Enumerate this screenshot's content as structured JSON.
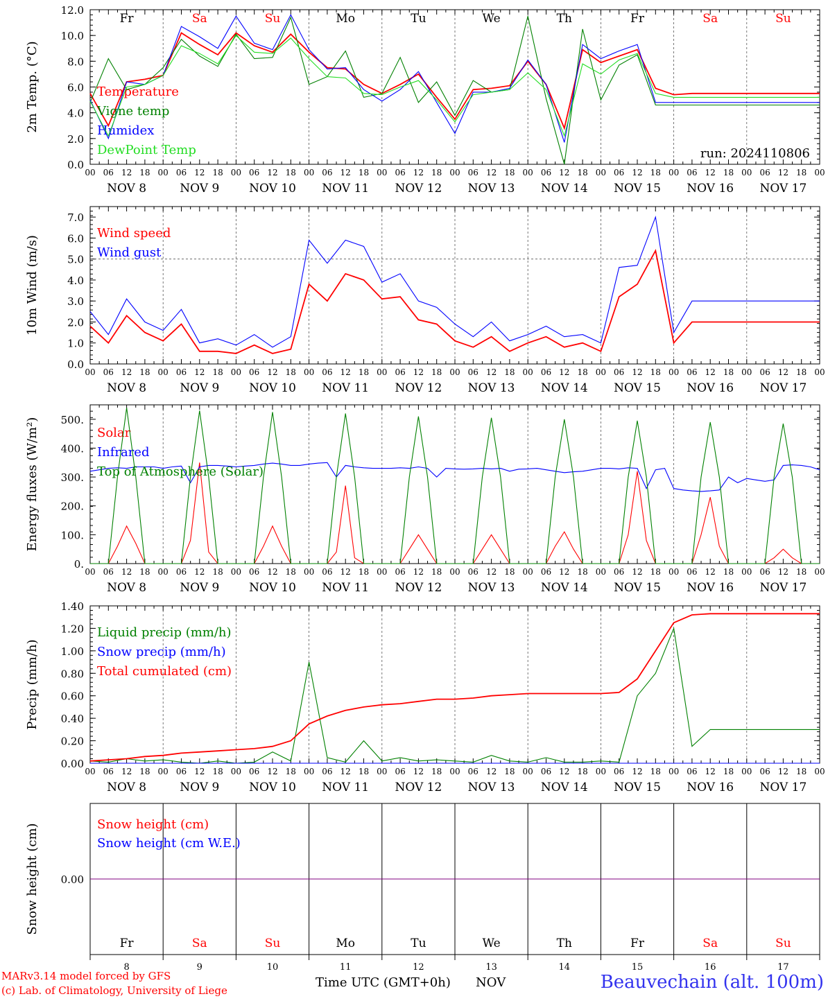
{
  "footer": {
    "credit_line1": "MARv3.14 model forced by GFS",
    "credit_line2": "(c) Lab. of Climatology, University of Liege",
    "xlabel": "Time UTC (GMT+0h)",
    "month": "NOV",
    "station": "Beauvechain (alt. 100m)"
  },
  "run_label": "run: 2024110806",
  "colors": {
    "red": "#ff0000",
    "green": "#008000",
    "blue": "#0000ff",
    "lightgreen": "#22dd22",
    "purple": "#800080",
    "weekend": "#ff0000",
    "weekday": "#000000"
  },
  "days": {
    "weekdays": [
      "Fr",
      "Sa",
      "Su",
      "Mo",
      "Tu",
      "We",
      "Th",
      "Fr",
      "Sa",
      "Su"
    ],
    "weekend": [
      false,
      true,
      true,
      false,
      false,
      false,
      false,
      false,
      true,
      true
    ],
    "labels": [
      "NOV  8",
      "NOV  9",
      "NOV 10",
      "NOV 11",
      "NOV 12",
      "NOV 13",
      "NOV 14",
      "NOV 15",
      "NOV 16",
      "NOV 17"
    ],
    "numbers": [
      "8",
      "9",
      "10",
      "11",
      "12",
      "13",
      "14",
      "15",
      "16",
      "17"
    ],
    "hours": [
      "00",
      "06",
      "12",
      "18"
    ],
    "final_hour": "00"
  },
  "chart_data": [
    {
      "type": "line",
      "ylabel": "2m Temp. (°C)",
      "ylim": [
        0,
        12
      ],
      "yticks": [
        "0.0",
        "2.0",
        "4.0",
        "6.0",
        "8.0",
        "10.0",
        "12.0"
      ],
      "x_hours": [
        0,
        6,
        12,
        18,
        24,
        30,
        36,
        42,
        48,
        54,
        60,
        66,
        72,
        78,
        84,
        90,
        96,
        102,
        108,
        114,
        120,
        126,
        132,
        138,
        144,
        150,
        156,
        162,
        168,
        174,
        180,
        186,
        192,
        198,
        204,
        210,
        216,
        222,
        228,
        234,
        240
      ],
      "series": [
        {
          "name": "Temperature",
          "color": "#ff0000",
          "values": [
            5.5,
            3.0,
            6.4,
            6.6,
            6.9,
            10.2,
            9.3,
            8.5,
            10.2,
            9.2,
            8.7,
            10.1,
            8.7,
            7.5,
            7.4,
            6.2,
            5.5,
            6.2,
            7.0,
            5.2,
            3.5,
            5.8,
            5.9,
            6.1,
            8.0,
            6.2,
            2.8,
            8.9,
            7.9,
            8.4,
            8.9,
            5.9,
            5.4,
            5.5,
            5.5,
            5.5,
            5.5,
            5.5,
            5.5,
            5.5,
            5.5
          ]
        },
        {
          "name": "Vigne temp",
          "color": "#008000",
          "values": [
            4.8,
            8.2,
            5.8,
            6.2,
            7.5,
            9.7,
            8.4,
            7.6,
            10.1,
            8.2,
            8.3,
            11.4,
            6.2,
            6.8,
            8.8,
            5.2,
            5.5,
            8.3,
            4.8,
            6.4,
            3.8,
            6.5,
            5.6,
            5.8,
            11.5,
            5.1,
            0.0,
            10.5,
            5.0,
            7.7,
            8.5,
            4.6,
            4.6,
            4.6,
            4.6,
            4.6,
            4.6,
            4.6,
            4.6,
            4.6,
            4.6
          ]
        },
        {
          "name": "Humidex",
          "color": "#0000ff",
          "values": [
            5.0,
            2.0,
            6.4,
            6.2,
            6.9,
            10.7,
            9.9,
            9.0,
            11.5,
            9.4,
            8.9,
            11.6,
            8.9,
            7.4,
            7.5,
            5.8,
            4.9,
            5.8,
            7.2,
            4.8,
            2.4,
            5.6,
            5.6,
            5.9,
            8.1,
            6.2,
            1.7,
            9.3,
            8.2,
            8.8,
            9.3,
            4.8,
            4.8,
            4.8,
            4.8,
            4.8,
            4.8,
            4.8,
            4.8,
            4.8,
            4.8
          ]
        },
        {
          "name": "DewPoint Temp",
          "color": "#22dd22",
          "values": [
            4.9,
            2.2,
            6.0,
            6.2,
            6.9,
            9.2,
            8.6,
            7.8,
            10.0,
            8.7,
            8.6,
            9.8,
            8.2,
            6.8,
            6.7,
            5.5,
            5.4,
            6.0,
            6.5,
            5.0,
            3.3,
            5.4,
            5.6,
            5.8,
            7.1,
            5.8,
            2.2,
            7.8,
            7.0,
            8.1,
            8.6,
            5.5,
            5.2,
            5.2,
            5.2,
            5.2,
            5.2,
            5.2,
            5.2,
            5.2,
            5.2
          ]
        }
      ]
    },
    {
      "type": "line",
      "ylabel": "10m Wind (m/s)",
      "ylim": [
        0,
        7.5
      ],
      "yticks": [
        "0.0",
        "1.0",
        "2.0",
        "3.0",
        "4.0",
        "5.0",
        "6.0",
        "7.0"
      ],
      "ref_line": 5.0,
      "x_hours": [
        0,
        6,
        12,
        18,
        24,
        30,
        36,
        42,
        48,
        54,
        60,
        66,
        72,
        78,
        84,
        90,
        96,
        102,
        108,
        114,
        120,
        126,
        132,
        138,
        144,
        150,
        156,
        162,
        168,
        174,
        180,
        186,
        192,
        198,
        204,
        210,
        216,
        222,
        228,
        234,
        240
      ],
      "series": [
        {
          "name": "Wind speed",
          "color": "#ff0000",
          "values": [
            1.8,
            1.0,
            2.3,
            1.5,
            1.1,
            1.9,
            0.6,
            0.6,
            0.5,
            0.9,
            0.5,
            0.7,
            3.8,
            3.0,
            4.3,
            4.0,
            3.1,
            3.2,
            2.1,
            1.9,
            1.1,
            0.8,
            1.3,
            0.6,
            1.0,
            1.3,
            0.8,
            1.0,
            0.6,
            3.2,
            3.8,
            5.4,
            1.0,
            2.0,
            2.0,
            2.0,
            2.0,
            2.0,
            2.0,
            2.0,
            2.0
          ]
        },
        {
          "name": "Wind gust",
          "color": "#0000ff",
          "values": [
            2.5,
            1.4,
            3.1,
            2.0,
            1.6,
            2.6,
            1.0,
            1.2,
            0.9,
            1.4,
            0.8,
            1.3,
            5.9,
            4.8,
            5.9,
            5.6,
            3.9,
            4.3,
            3.0,
            2.7,
            1.9,
            1.3,
            2.0,
            1.1,
            1.4,
            1.8,
            1.3,
            1.4,
            1.0,
            4.6,
            4.7,
            7.0,
            1.5,
            3.0,
            3.0,
            3.0,
            3.0,
            3.0,
            3.0,
            3.0,
            3.0
          ]
        }
      ]
    },
    {
      "type": "line",
      "ylabel": "Energy fluxes (W/m²)",
      "ylim": [
        0,
        550
      ],
      "yticks": [
        "0.",
        "100.",
        "200.",
        "300.",
        "400.",
        "500."
      ],
      "x_hours": [
        0,
        3,
        6,
        9,
        12,
        15,
        18,
        21,
        24,
        27,
        30,
        33,
        36,
        39,
        42,
        45,
        48,
        51,
        54,
        57,
        60,
        63,
        66,
        69,
        72,
        75,
        78,
        81,
        84,
        87,
        90,
        93,
        96,
        99,
        102,
        105,
        108,
        111,
        114,
        117,
        120,
        123,
        126,
        129,
        132,
        135,
        138,
        141,
        144,
        147,
        150,
        153,
        156,
        159,
        162,
        165,
        168,
        171,
        174,
        177,
        180,
        183,
        186,
        189,
        192,
        195,
        198,
        201,
        204,
        207,
        210,
        213,
        216,
        219,
        222,
        225,
        228,
        231,
        234,
        237,
        240
      ],
      "series": [
        {
          "name": "Solar",
          "color": "#ff0000",
          "values": [
            0,
            0,
            0,
            60,
            130,
            70,
            0,
            0,
            0,
            0,
            0,
            80,
            350,
            40,
            0,
            0,
            0,
            0,
            0,
            60,
            130,
            60,
            0,
            0,
            0,
            0,
            0,
            40,
            270,
            20,
            0,
            0,
            0,
            0,
            0,
            50,
            100,
            50,
            0,
            0,
            0,
            0,
            0,
            50,
            100,
            50,
            0,
            0,
            0,
            0,
            0,
            60,
            110,
            50,
            0,
            0,
            0,
            0,
            0,
            100,
            320,
            80,
            0,
            0,
            0,
            0,
            0,
            100,
            230,
            60,
            0,
            0,
            0,
            0,
            0,
            20,
            50,
            20,
            0,
            0,
            0
          ]
        },
        {
          "name": "Infrared",
          "color": "#0000ff",
          "values": [
            320,
            325,
            330,
            332,
            330,
            335,
            335,
            335,
            330,
            335,
            338,
            280,
            335,
            340,
            340,
            338,
            335,
            338,
            340,
            345,
            348,
            345,
            340,
            340,
            345,
            348,
            350,
            300,
            340,
            335,
            332,
            330,
            330,
            330,
            332,
            330,
            335,
            330,
            300,
            330,
            328,
            327,
            328,
            330,
            328,
            330,
            320,
            327,
            328,
            330,
            325,
            320,
            315,
            318,
            320,
            325,
            330,
            330,
            328,
            332,
            330,
            260,
            325,
            330,
            260,
            255,
            252,
            250,
            252,
            255,
            300,
            280,
            295,
            290,
            285,
            290,
            340,
            342,
            340,
            335,
            325
          ]
        },
        {
          "name": "Top of Atmosphere (Solar)",
          "color": "#008000",
          "values": [
            0,
            0,
            0,
            300,
            540,
            300,
            0,
            0,
            0,
            0,
            0,
            300,
            530,
            300,
            0,
            0,
            0,
            0,
            0,
            300,
            525,
            300,
            0,
            0,
            0,
            0,
            0,
            300,
            520,
            300,
            0,
            0,
            0,
            0,
            0,
            300,
            510,
            300,
            0,
            0,
            0,
            0,
            0,
            300,
            505,
            300,
            0,
            0,
            0,
            0,
            0,
            300,
            500,
            300,
            0,
            0,
            0,
            0,
            0,
            300,
            495,
            300,
            0,
            0,
            0,
            0,
            0,
            300,
            490,
            300,
            0,
            0,
            0,
            0,
            0,
            300,
            485,
            300,
            0,
            0,
            0
          ]
        }
      ]
    },
    {
      "type": "line",
      "ylabel": "Precip (mm/h)",
      "ylim": [
        0,
        1.4
      ],
      "yticks": [
        "0.00",
        "0.20",
        "0.40",
        "0.60",
        "0.80",
        "1.00",
        "1.20",
        "1.40"
      ],
      "x_hours": [
        0,
        6,
        12,
        18,
        24,
        30,
        36,
        42,
        48,
        54,
        60,
        66,
        72,
        78,
        84,
        90,
        96,
        102,
        108,
        114,
        120,
        126,
        132,
        138,
        144,
        150,
        156,
        162,
        168,
        174,
        180,
        186,
        192,
        198,
        204,
        210,
        216,
        222,
        228,
        234,
        240
      ],
      "series": [
        {
          "name": "Liquid precip (mm/h)",
          "color": "#008000",
          "values": [
            0.02,
            0.01,
            0.04,
            0.02,
            0.03,
            0.01,
            0.0,
            0.02,
            0.0,
            0.01,
            0.1,
            0.02,
            0.9,
            0.05,
            0.01,
            0.2,
            0.02,
            0.05,
            0.02,
            0.03,
            0.02,
            0.01,
            0.07,
            0.02,
            0.01,
            0.05,
            0.01,
            0.01,
            0.02,
            0.01,
            0.6,
            0.8,
            1.2,
            0.15,
            0.3,
            0.3,
            0.3,
            0.3,
            0.3,
            0.3,
            0.3
          ]
        },
        {
          "name": "Snow precip (mm/h)",
          "color": "#0000ff",
          "values": [
            0,
            0,
            0,
            0,
            0,
            0,
            0,
            0,
            0,
            0,
            0,
            0,
            0,
            0,
            0,
            0,
            0,
            0,
            0,
            0,
            0,
            0,
            0,
            0,
            0,
            0,
            0,
            0,
            0,
            0,
            0,
            0,
            0,
            0,
            0,
            0,
            0,
            0,
            0,
            0,
            0
          ]
        },
        {
          "name": "Total cumulated (cm)",
          "color": "#ff0000",
          "values": [
            0.02,
            0.03,
            0.04,
            0.06,
            0.07,
            0.09,
            0.1,
            0.11,
            0.12,
            0.13,
            0.15,
            0.2,
            0.35,
            0.42,
            0.47,
            0.5,
            0.52,
            0.53,
            0.55,
            0.57,
            0.57,
            0.58,
            0.6,
            0.61,
            0.62,
            0.62,
            0.62,
            0.62,
            0.62,
            0.63,
            0.75,
            1.0,
            1.25,
            1.32,
            1.33,
            1.33,
            1.33,
            1.33,
            1.33,
            1.33,
            1.33
          ]
        }
      ]
    },
    {
      "type": "line",
      "ylabel": "Snow height (cm)",
      "ylim": [
        -1,
        1
      ],
      "yticks": [
        "0.00"
      ],
      "x_hours": [
        0,
        240
      ],
      "series": [
        {
          "name": "Snow height (cm)",
          "color": "#ff0000",
          "values": [
            0,
            0
          ]
        },
        {
          "name": "Snow height (cm W.E.)",
          "color": "#0000ff",
          "values": [
            0,
            0
          ]
        }
      ]
    }
  ]
}
